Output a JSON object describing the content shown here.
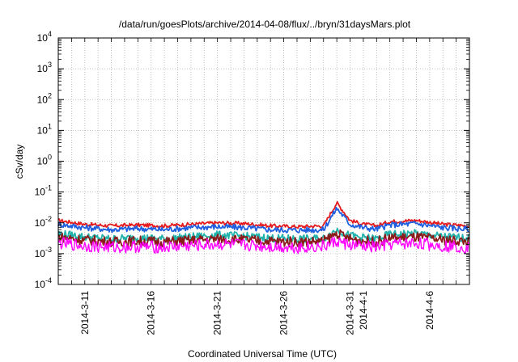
{
  "chart_data": {
    "type": "line",
    "title": "/data/run/goesPlots/archive/2014-04-08/flux/../bryn/31daysMars.plot",
    "xlabel": "Coordinated Universal Time (UTC)",
    "ylabel": "cSv/day",
    "yscale": "log",
    "ylim": [
      0.0001,
      10000
    ],
    "xlim": [
      "2014-03-09",
      "2014-04-09"
    ],
    "grid": true,
    "ytick_labels": [
      {
        "base": "10",
        "exp": "-4",
        "value": 0.0001
      },
      {
        "base": "10",
        "exp": "-3",
        "value": 0.001
      },
      {
        "base": "10",
        "exp": "-2",
        "value": 0.01
      },
      {
        "base": "10",
        "exp": "-1",
        "value": 0.1
      },
      {
        "base": "10",
        "exp": "0",
        "value": 1
      },
      {
        "base": "10",
        "exp": "1",
        "value": 10
      },
      {
        "base": "10",
        "exp": "2",
        "value": 100
      },
      {
        "base": "10",
        "exp": "3",
        "value": 1000
      },
      {
        "base": "10",
        "exp": "4",
        "value": 10000
      }
    ],
    "xtick_labels": [
      {
        "label": "2014-3-11",
        "date": "2014-03-11"
      },
      {
        "label": "2014-3-16",
        "date": "2014-03-16"
      },
      {
        "label": "2014-3-21",
        "date": "2014-03-21"
      },
      {
        "label": "2014-3-26",
        "date": "2014-03-26"
      },
      {
        "label": "2014-3-31",
        "date": "2014-03-31"
      },
      {
        "label": "2014-4-1",
        "date": "2014-04-01"
      },
      {
        "label": "2014-4-6",
        "date": "2014-04-06"
      }
    ],
    "series": [
      {
        "color": "#e41a1c",
        "x": [
          "2014-03-09",
          "2014-03-11",
          "2014-03-13",
          "2014-03-15",
          "2014-03-17",
          "2014-03-19",
          "2014-03-21",
          "2014-03-23",
          "2014-03-25",
          "2014-03-27",
          "2014-03-29",
          "2014-03-30",
          "2014-03-31",
          "2014-04-01",
          "2014-04-02",
          "2014-04-03",
          "2014-04-05",
          "2014-04-07",
          "2014-04-09"
        ],
        "y": [
          0.012,
          0.009,
          0.008,
          0.0085,
          0.008,
          0.009,
          0.01,
          0.0095,
          0.008,
          0.0075,
          0.008,
          0.045,
          0.012,
          0.009,
          0.008,
          0.011,
          0.012,
          0.009,
          0.008
        ]
      },
      {
        "color": "#1f5fe0",
        "x": [
          "2014-03-09",
          "2014-03-11",
          "2014-03-13",
          "2014-03-15",
          "2014-03-17",
          "2014-03-19",
          "2014-03-21",
          "2014-03-23",
          "2014-03-25",
          "2014-03-27",
          "2014-03-29",
          "2014-03-30",
          "2014-03-31",
          "2014-04-01",
          "2014-04-02",
          "2014-04-03",
          "2014-04-05",
          "2014-04-07",
          "2014-04-09"
        ],
        "y": [
          0.009,
          0.007,
          0.006,
          0.0065,
          0.006,
          0.007,
          0.0075,
          0.007,
          0.006,
          0.0058,
          0.006,
          0.03,
          0.009,
          0.007,
          0.0062,
          0.0085,
          0.0095,
          0.007,
          0.0062
        ]
      },
      {
        "color": "#20b2aa",
        "x": [
          "2014-03-09",
          "2014-03-11",
          "2014-03-13",
          "2014-03-15",
          "2014-03-17",
          "2014-03-19",
          "2014-03-21",
          "2014-03-23",
          "2014-03-25",
          "2014-03-27",
          "2014-03-29",
          "2014-03-30",
          "2014-03-31",
          "2014-04-01",
          "2014-04-02",
          "2014-04-03",
          "2014-04-05",
          "2014-04-07",
          "2014-04-09"
        ],
        "y": [
          0.0045,
          0.0035,
          0.003,
          0.0033,
          0.003,
          0.0035,
          0.004,
          0.0037,
          0.0032,
          0.003,
          0.0031,
          0.006,
          0.0038,
          0.0033,
          0.003,
          0.0042,
          0.0045,
          0.0036,
          0.0032
        ]
      },
      {
        "color": "#8b1a1a",
        "x": [
          "2014-03-09",
          "2014-03-11",
          "2014-03-13",
          "2014-03-15",
          "2014-03-17",
          "2014-03-19",
          "2014-03-21",
          "2014-03-23",
          "2014-03-25",
          "2014-03-27",
          "2014-03-29",
          "2014-03-30",
          "2014-03-31",
          "2014-04-01",
          "2014-04-02",
          "2014-04-03",
          "2014-04-05",
          "2014-04-07",
          "2014-04-09"
        ],
        "y": [
          0.0035,
          0.0028,
          0.0024,
          0.0026,
          0.0024,
          0.0027,
          0.003,
          0.0028,
          0.0025,
          0.0024,
          0.0025,
          0.0045,
          0.003,
          0.0026,
          0.0024,
          0.0032,
          0.0034,
          0.0028,
          0.0025
        ]
      },
      {
        "color": "#ff00ff",
        "x": [
          "2014-03-09",
          "2014-03-11",
          "2014-03-13",
          "2014-03-15",
          "2014-03-17",
          "2014-03-19",
          "2014-03-21",
          "2014-03-23",
          "2014-03-25",
          "2014-03-27",
          "2014-03-29",
          "2014-03-30",
          "2014-03-31",
          "2014-04-01",
          "2014-04-02",
          "2014-04-03",
          "2014-04-05",
          "2014-04-07",
          "2014-04-09"
        ],
        "y": [
          0.0022,
          0.0018,
          0.0016,
          0.0017,
          0.0016,
          0.0018,
          0.002,
          0.0019,
          0.0017,
          0.0016,
          0.0017,
          0.0025,
          0.0019,
          0.0017,
          0.0016,
          0.002,
          0.0022,
          0.0018,
          0.0016
        ]
      }
    ]
  }
}
